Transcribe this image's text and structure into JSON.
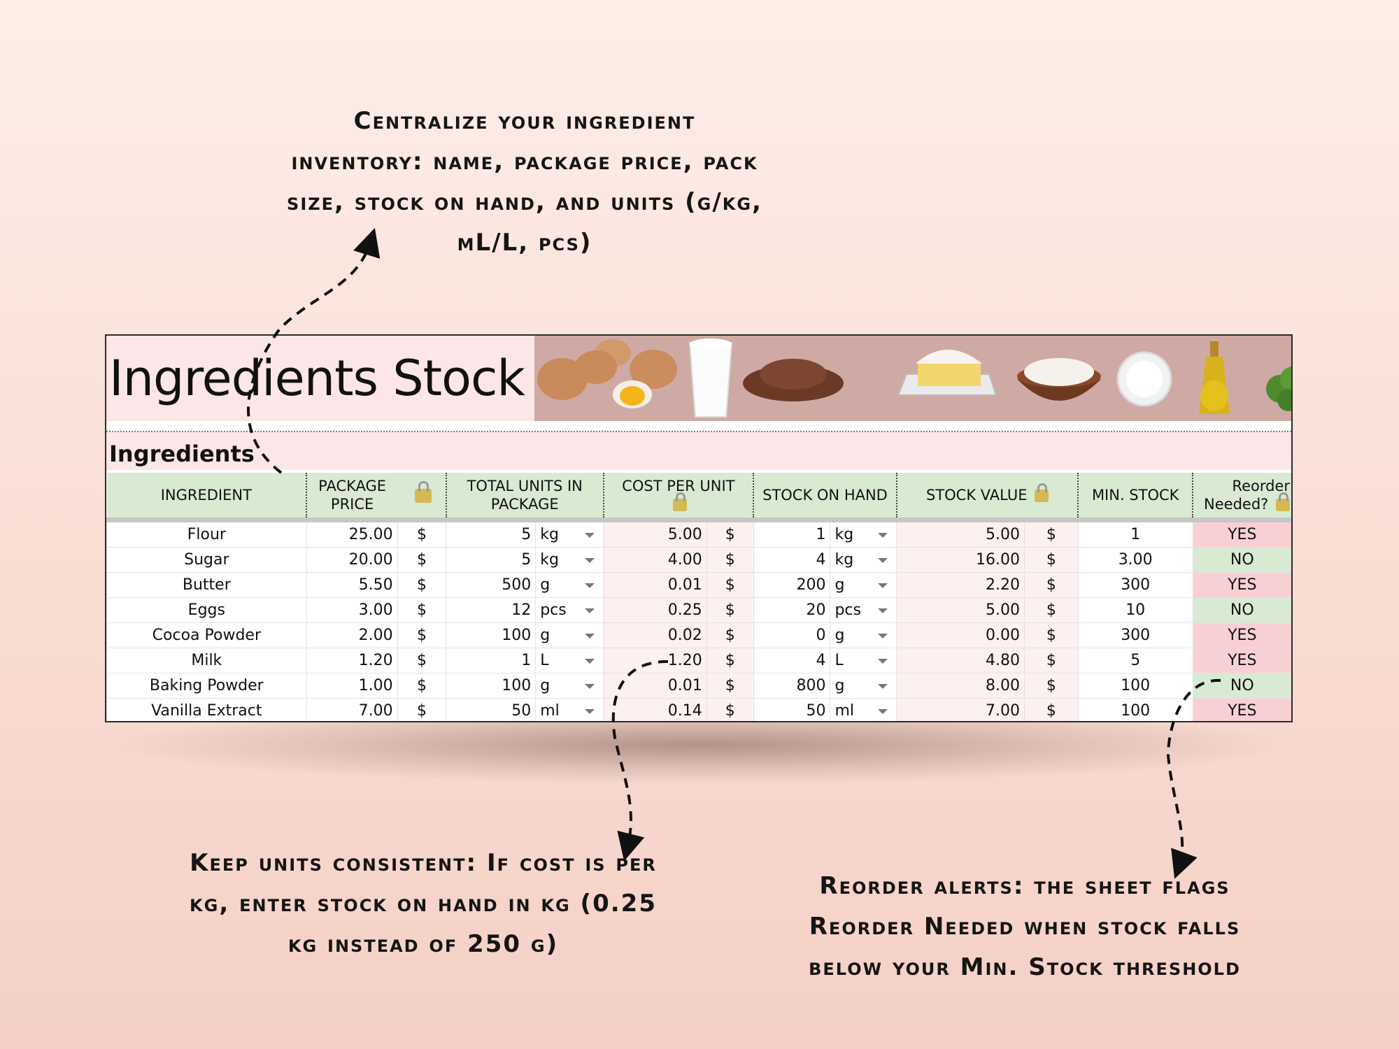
{
  "callouts": {
    "top": [
      "Centralize your ingredient",
      "inventory: name, package price, pack",
      "size, stock on hand, and units (g/kg,",
      "mL/L, pcs)"
    ],
    "left": [
      "Keep units consistent: If cost is per",
      "kg, enter stock on hand in kg (0.25",
      "kg instead of 250 g)"
    ],
    "right": [
      "Reorder alerts: the sheet flags",
      "Reorder Needed when stock falls",
      "below your Min. Stock threshold"
    ]
  },
  "sheet": {
    "title": "Ingredients Stock",
    "section_title": "Ingredients",
    "banner_items": [
      "eggs",
      "milk",
      "cocoa",
      "butter",
      "flour",
      "sugar",
      "oil",
      "herbs"
    ],
    "columns": {
      "ingredient": "INGREDIENT",
      "package_price": "PACKAGE PRICE",
      "total_units": "TOTAL UNITS IN PACKAGE",
      "cost_per_unit": "COST PER UNIT",
      "stock_on_hand": "STOCK ON HAND",
      "stock_value": "STOCK VALUE",
      "min_stock": "MIN. STOCK",
      "reorder": "Reorder Needed?"
    },
    "currency": "$",
    "rows": [
      {
        "name": "Flour",
        "price": "25.00",
        "units": "5",
        "unit": "kg",
        "cost": "5.00",
        "stock": "1",
        "stock_unit": "kg",
        "value": "5.00",
        "min": "1",
        "reorder": "YES"
      },
      {
        "name": "Sugar",
        "price": "20.00",
        "units": "5",
        "unit": "kg",
        "cost": "4.00",
        "stock": "4",
        "stock_unit": "kg",
        "value": "16.00",
        "min": "3.00",
        "reorder": "NO"
      },
      {
        "name": "Butter",
        "price": "5.50",
        "units": "500",
        "unit": "g",
        "cost": "0.01",
        "stock": "200",
        "stock_unit": "g",
        "value": "2.20",
        "min": "300",
        "reorder": "YES"
      },
      {
        "name": "Eggs",
        "price": "3.00",
        "units": "12",
        "unit": "pcs",
        "cost": "0.25",
        "stock": "20",
        "stock_unit": "pcs",
        "value": "5.00",
        "min": "10",
        "reorder": "NO"
      },
      {
        "name": "Cocoa Powder",
        "price": "2.00",
        "units": "100",
        "unit": "g",
        "cost": "0.02",
        "stock": "0",
        "stock_unit": "g",
        "value": "0.00",
        "min": "300",
        "reorder": "YES"
      },
      {
        "name": "Milk",
        "price": "1.20",
        "units": "1",
        "unit": "L",
        "cost": "1.20",
        "stock": "4",
        "stock_unit": "L",
        "value": "4.80",
        "min": "5",
        "reorder": "YES"
      },
      {
        "name": "Baking Powder",
        "price": "1.00",
        "units": "100",
        "unit": "g",
        "cost": "0.01",
        "stock": "800",
        "stock_unit": "g",
        "value": "8.00",
        "min": "100",
        "reorder": "NO"
      },
      {
        "name": "Vanilla Extract",
        "price": "7.00",
        "units": "50",
        "unit": "ml",
        "cost": "0.14",
        "stock": "50",
        "stock_unit": "ml",
        "value": "7.00",
        "min": "100",
        "reorder": "YES"
      }
    ]
  },
  "colors": {
    "header_green": "#d9ead3",
    "reorder_yes": "#f8d0d4",
    "reorder_no": "#d9ead3",
    "title_bg": "#fde6e7",
    "banner_bg": "#cfaaa5"
  }
}
